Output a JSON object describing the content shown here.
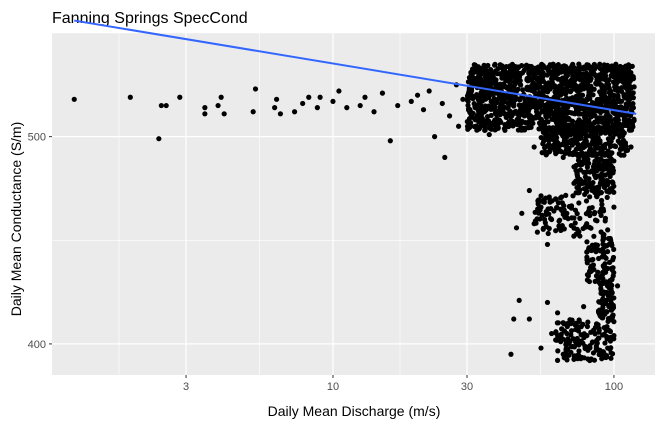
{
  "chart_data": {
    "type": "scatter",
    "title": "Fanning Springs SpecCond",
    "xlabel": "Daily Mean Discharge (m/s)",
    "ylabel": "Daily Mean Conductance (S/m)",
    "x_scale": "log10",
    "xlim": [
      1.0,
      140
    ],
    "ylim": [
      385,
      550
    ],
    "x_ticks": [
      3,
      10,
      30,
      100
    ],
    "x_tick_labels": [
      "3",
      "10",
      "30",
      "100"
    ],
    "y_ticks": [
      400,
      500
    ],
    "y_tick_labels": [
      "400",
      "500"
    ],
    "grid": true,
    "background": "#ebebeb",
    "grid_color": "#ffffff",
    "point_color": "#000000",
    "trend_color": "#3366ff",
    "trend_line": {
      "x": [
        1.2,
        120
      ],
      "y": [
        556,
        511
      ]
    },
    "points": [
      [
        1.2,
        518
      ],
      [
        1.9,
        519
      ],
      [
        2.4,
        499
      ],
      [
        2.45,
        515
      ],
      [
        2.55,
        515
      ],
      [
        2.85,
        519
      ],
      [
        3.5,
        511
      ],
      [
        3.5,
        514
      ],
      [
        3.9,
        515
      ],
      [
        4.0,
        519
      ],
      [
        4.1,
        511
      ],
      [
        5.2,
        512
      ],
      [
        5.3,
        523
      ],
      [
        6.2,
        514
      ],
      [
        6.3,
        518
      ],
      [
        6.5,
        511
      ],
      [
        7.3,
        512
      ],
      [
        7.8,
        516
      ],
      [
        8.2,
        519
      ],
      [
        8.8,
        514
      ],
      [
        9.0,
        519
      ],
      [
        10.0,
        517
      ],
      [
        10.5,
        522
      ],
      [
        11.2,
        514
      ],
      [
        12.5,
        515
      ],
      [
        13.0,
        519
      ],
      [
        14.0,
        512
      ],
      [
        15.0,
        521
      ],
      [
        16.0,
        498
      ],
      [
        17.0,
        515
      ],
      [
        19.0,
        517
      ],
      [
        20.0,
        520
      ],
      [
        21.0,
        513
      ],
      [
        22.0,
        522
      ],
      [
        23.0,
        500
      ],
      [
        24.5,
        516
      ],
      [
        25.0,
        490
      ],
      [
        26.0,
        510
      ],
      [
        27.5,
        525
      ],
      [
        28.0,
        505
      ],
      [
        29.0,
        518
      ],
      [
        31.0,
        520
      ],
      [
        33.0,
        512
      ],
      [
        35.0,
        522
      ],
      [
        36.0,
        501
      ],
      [
        38.0,
        526
      ],
      [
        40.0,
        515
      ],
      [
        42.0,
        505
      ],
      [
        45.0,
        522
      ],
      [
        48.0,
        510
      ],
      [
        50.0,
        530
      ],
      [
        52.0,
        495
      ],
      [
        55.0,
        518
      ],
      [
        58.0,
        500
      ],
      [
        60.0,
        528
      ],
      [
        63.0,
        512
      ],
      [
        66.0,
        490
      ],
      [
        70.0,
        522
      ],
      [
        74.0,
        505
      ],
      [
        78.0,
        530
      ],
      [
        82.0,
        515
      ],
      [
        86.0,
        495
      ],
      [
        90.0,
        525
      ],
      [
        95.0,
        508
      ],
      [
        100.0,
        520
      ],
      [
        105.0,
        500
      ],
      [
        110.0,
        514
      ],
      [
        115.0,
        495
      ],
      [
        118.0,
        524
      ],
      [
        45.0,
        456
      ],
      [
        47.0,
        463
      ],
      [
        50.0,
        474
      ],
      [
        52.0,
        458
      ],
      [
        55.0,
        466
      ],
      [
        58.0,
        448
      ],
      [
        60.0,
        460
      ],
      [
        62.0,
        470
      ],
      [
        65.0,
        455
      ],
      [
        68.0,
        463
      ],
      [
        72.0,
        452
      ],
      [
        75.0,
        468
      ],
      [
        80.0,
        458
      ],
      [
        85.0,
        446
      ],
      [
        90.0,
        462
      ],
      [
        95.0,
        455
      ],
      [
        100.0,
        466
      ],
      [
        43.0,
        395
      ],
      [
        44.0,
        412
      ],
      [
        46.0,
        421
      ],
      [
        50.0,
        412
      ],
      [
        55.0,
        398
      ],
      [
        58.0,
        420
      ],
      [
        60.0,
        405
      ],
      [
        63.0,
        415
      ],
      [
        66.0,
        395
      ],
      [
        70.0,
        410
      ],
      [
        74.0,
        400
      ],
      [
        78.0,
        418
      ],
      [
        82.0,
        392
      ],
      [
        86.0,
        408
      ],
      [
        90.0,
        420
      ],
      [
        95.0,
        398
      ],
      [
        98.0,
        412
      ],
      [
        100.0,
        404
      ],
      [
        103.0,
        428
      ]
    ],
    "clusters": [
      {
        "x_range": [
          30,
          118
        ],
        "y_range": [
          503,
          535
        ],
        "count": 1400
      },
      {
        "x_range": [
          55,
          112
        ],
        "y_range": [
          491,
          504
        ],
        "count": 250
      },
      {
        "x_range": [
          72,
          100
        ],
        "y_range": [
          472,
          492
        ],
        "count": 160
      },
      {
        "x_range": [
          52,
          96
        ],
        "y_range": [
          452,
          472
        ],
        "count": 110
      },
      {
        "x_range": [
          80,
          100
        ],
        "y_range": [
          430,
          452
        ],
        "count": 90
      },
      {
        "x_range": [
          88,
          100
        ],
        "y_range": [
          412,
          430
        ],
        "count": 70
      },
      {
        "x_range": [
          62,
          100
        ],
        "y_range": [
          392,
          412
        ],
        "count": 150
      }
    ]
  }
}
